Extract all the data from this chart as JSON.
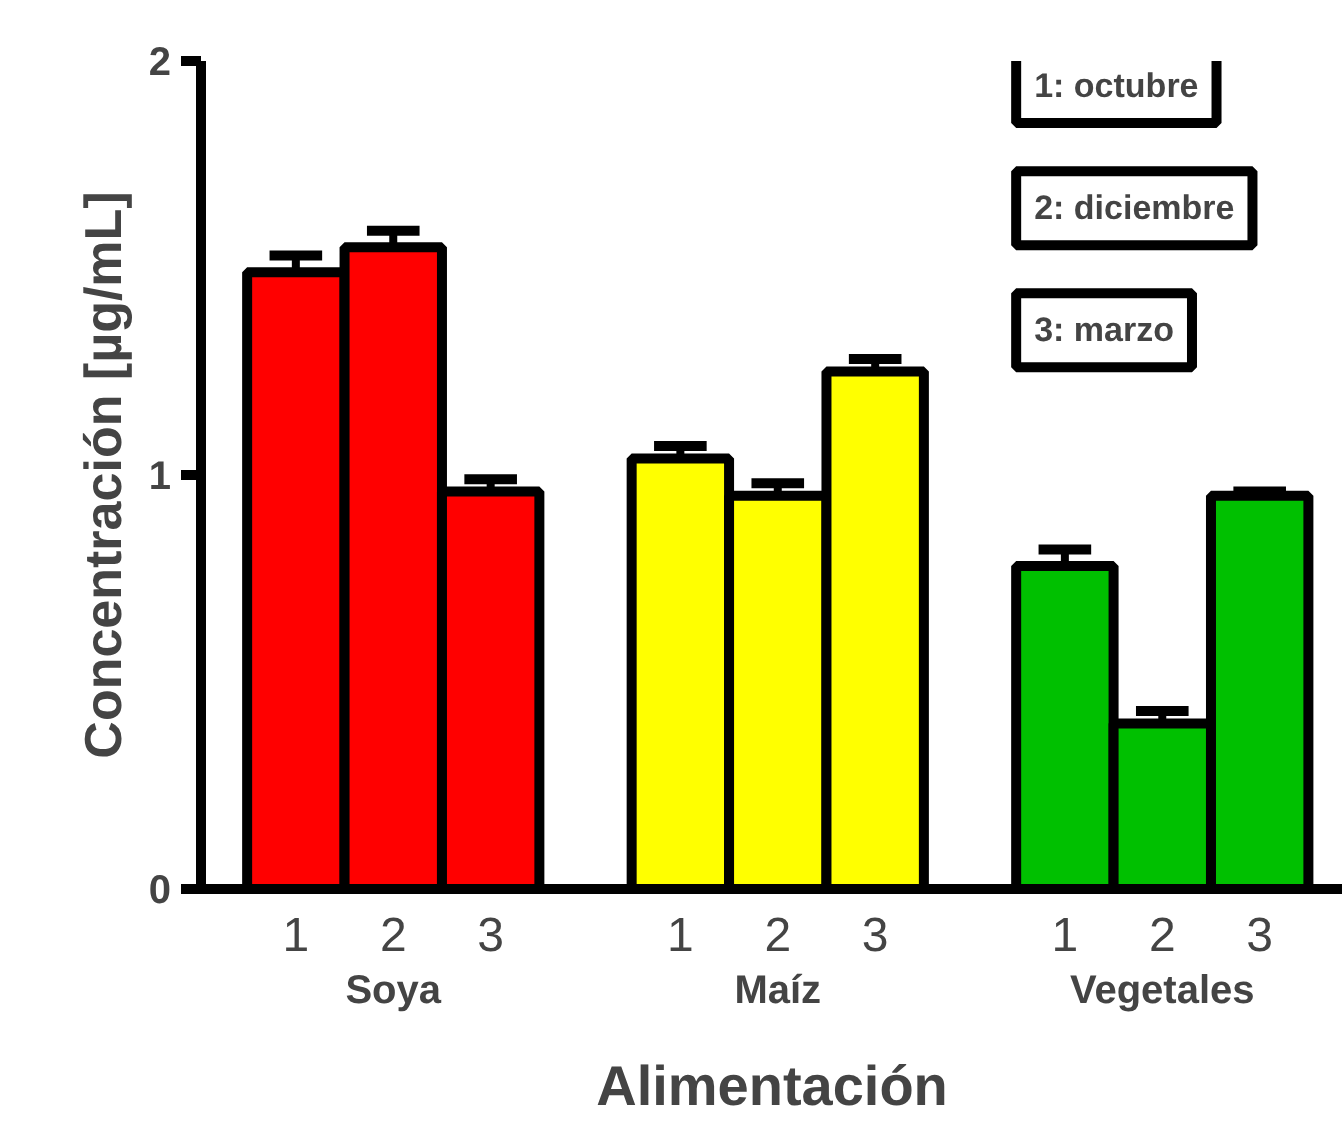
{
  "chart_data": {
    "type": "bar",
    "xlabel": "Alimentación",
    "ylabel": "Concentración [µg/mL]",
    "categories": [
      "Soya",
      "Maíz",
      "Vegetales"
    ],
    "series": [
      {
        "name": "1",
        "colors": [
          "#ff0000",
          "#ffff00",
          "#00c000"
        ],
        "values": [
          1.49,
          1.04,
          0.78
        ],
        "errors": [
          0.04,
          0.03,
          0.04
        ]
      },
      {
        "name": "2",
        "colors": [
          "#ff0000",
          "#ffff00",
          "#00c000"
        ],
        "values": [
          1.55,
          0.95,
          0.4
        ],
        "errors": [
          0.04,
          0.03,
          0.03
        ]
      },
      {
        "name": "3",
        "colors": [
          "#ff0000",
          "#ffff00",
          "#00c000"
        ],
        "values": [
          0.96,
          1.25,
          0.95
        ],
        "errors": [
          0.03,
          0.03,
          0.01
        ]
      }
    ],
    "ylim": [
      0,
      2
    ],
    "yticks": [
      0,
      1,
      2
    ],
    "grid": false,
    "annotations": [
      "1: octubre",
      "2: diciembre",
      "3: marzo"
    ]
  }
}
